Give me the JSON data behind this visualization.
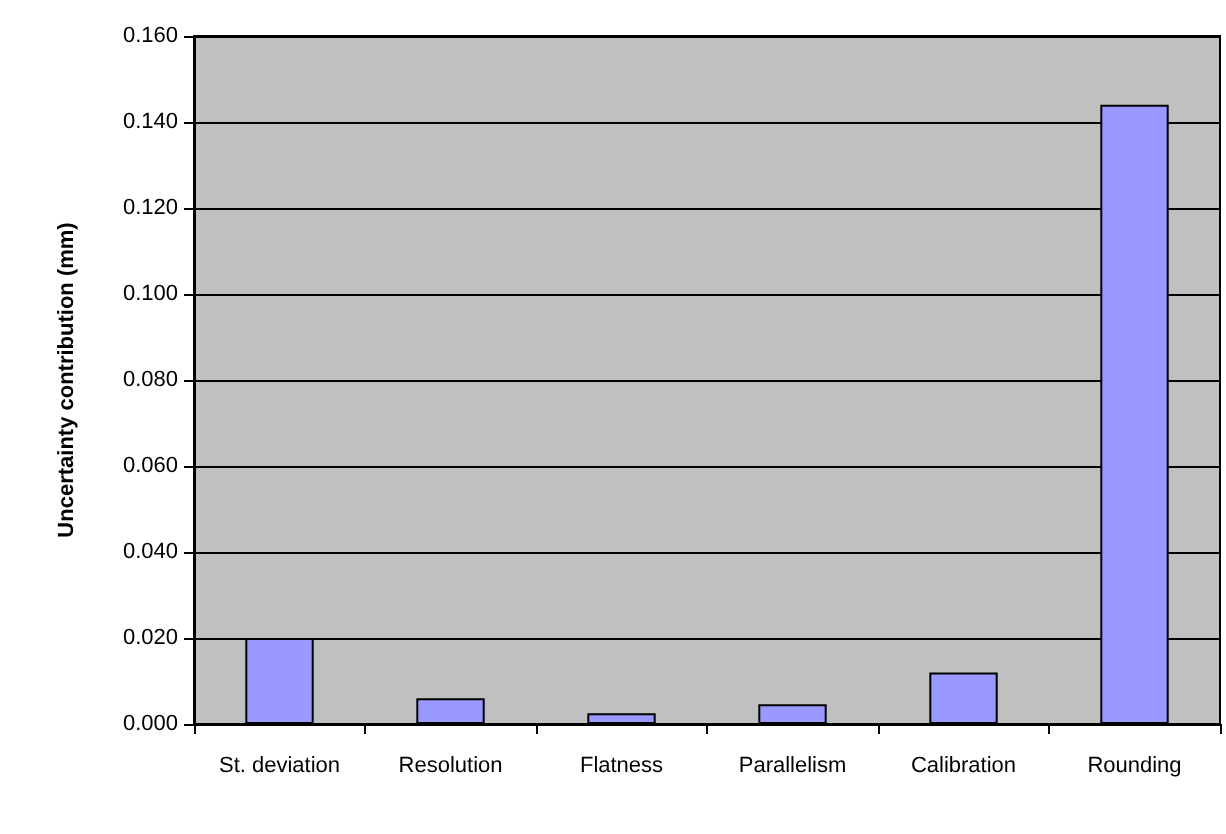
{
  "chart_data": {
    "type": "bar",
    "ylabel": "Uncertainty contribution (mm)",
    "categories": [
      "St. deviation",
      "Resolution",
      "Flatness",
      "Parallelism",
      "Calibration",
      "Rounding"
    ],
    "values": [
      0.02,
      0.006,
      0.0025,
      0.0046,
      0.012,
      0.144
    ],
    "color": "#9999ff",
    "ylim": [
      0,
      0.16
    ],
    "yticks": [
      {
        "value": 0,
        "label": "0.000"
      },
      {
        "value": 0.02,
        "label": "0.020"
      },
      {
        "value": 0.04,
        "label": "0.040"
      },
      {
        "value": 0.06,
        "label": "0.060"
      },
      {
        "value": 0.08,
        "label": "0.080"
      },
      {
        "value": 0.1,
        "label": "0.100"
      },
      {
        "value": 0.12,
        "label": "0.120"
      },
      {
        "value": 0.14,
        "label": "0.140"
      },
      {
        "value": 0.16,
        "label": "0.160"
      }
    ],
    "grid": "y"
  }
}
